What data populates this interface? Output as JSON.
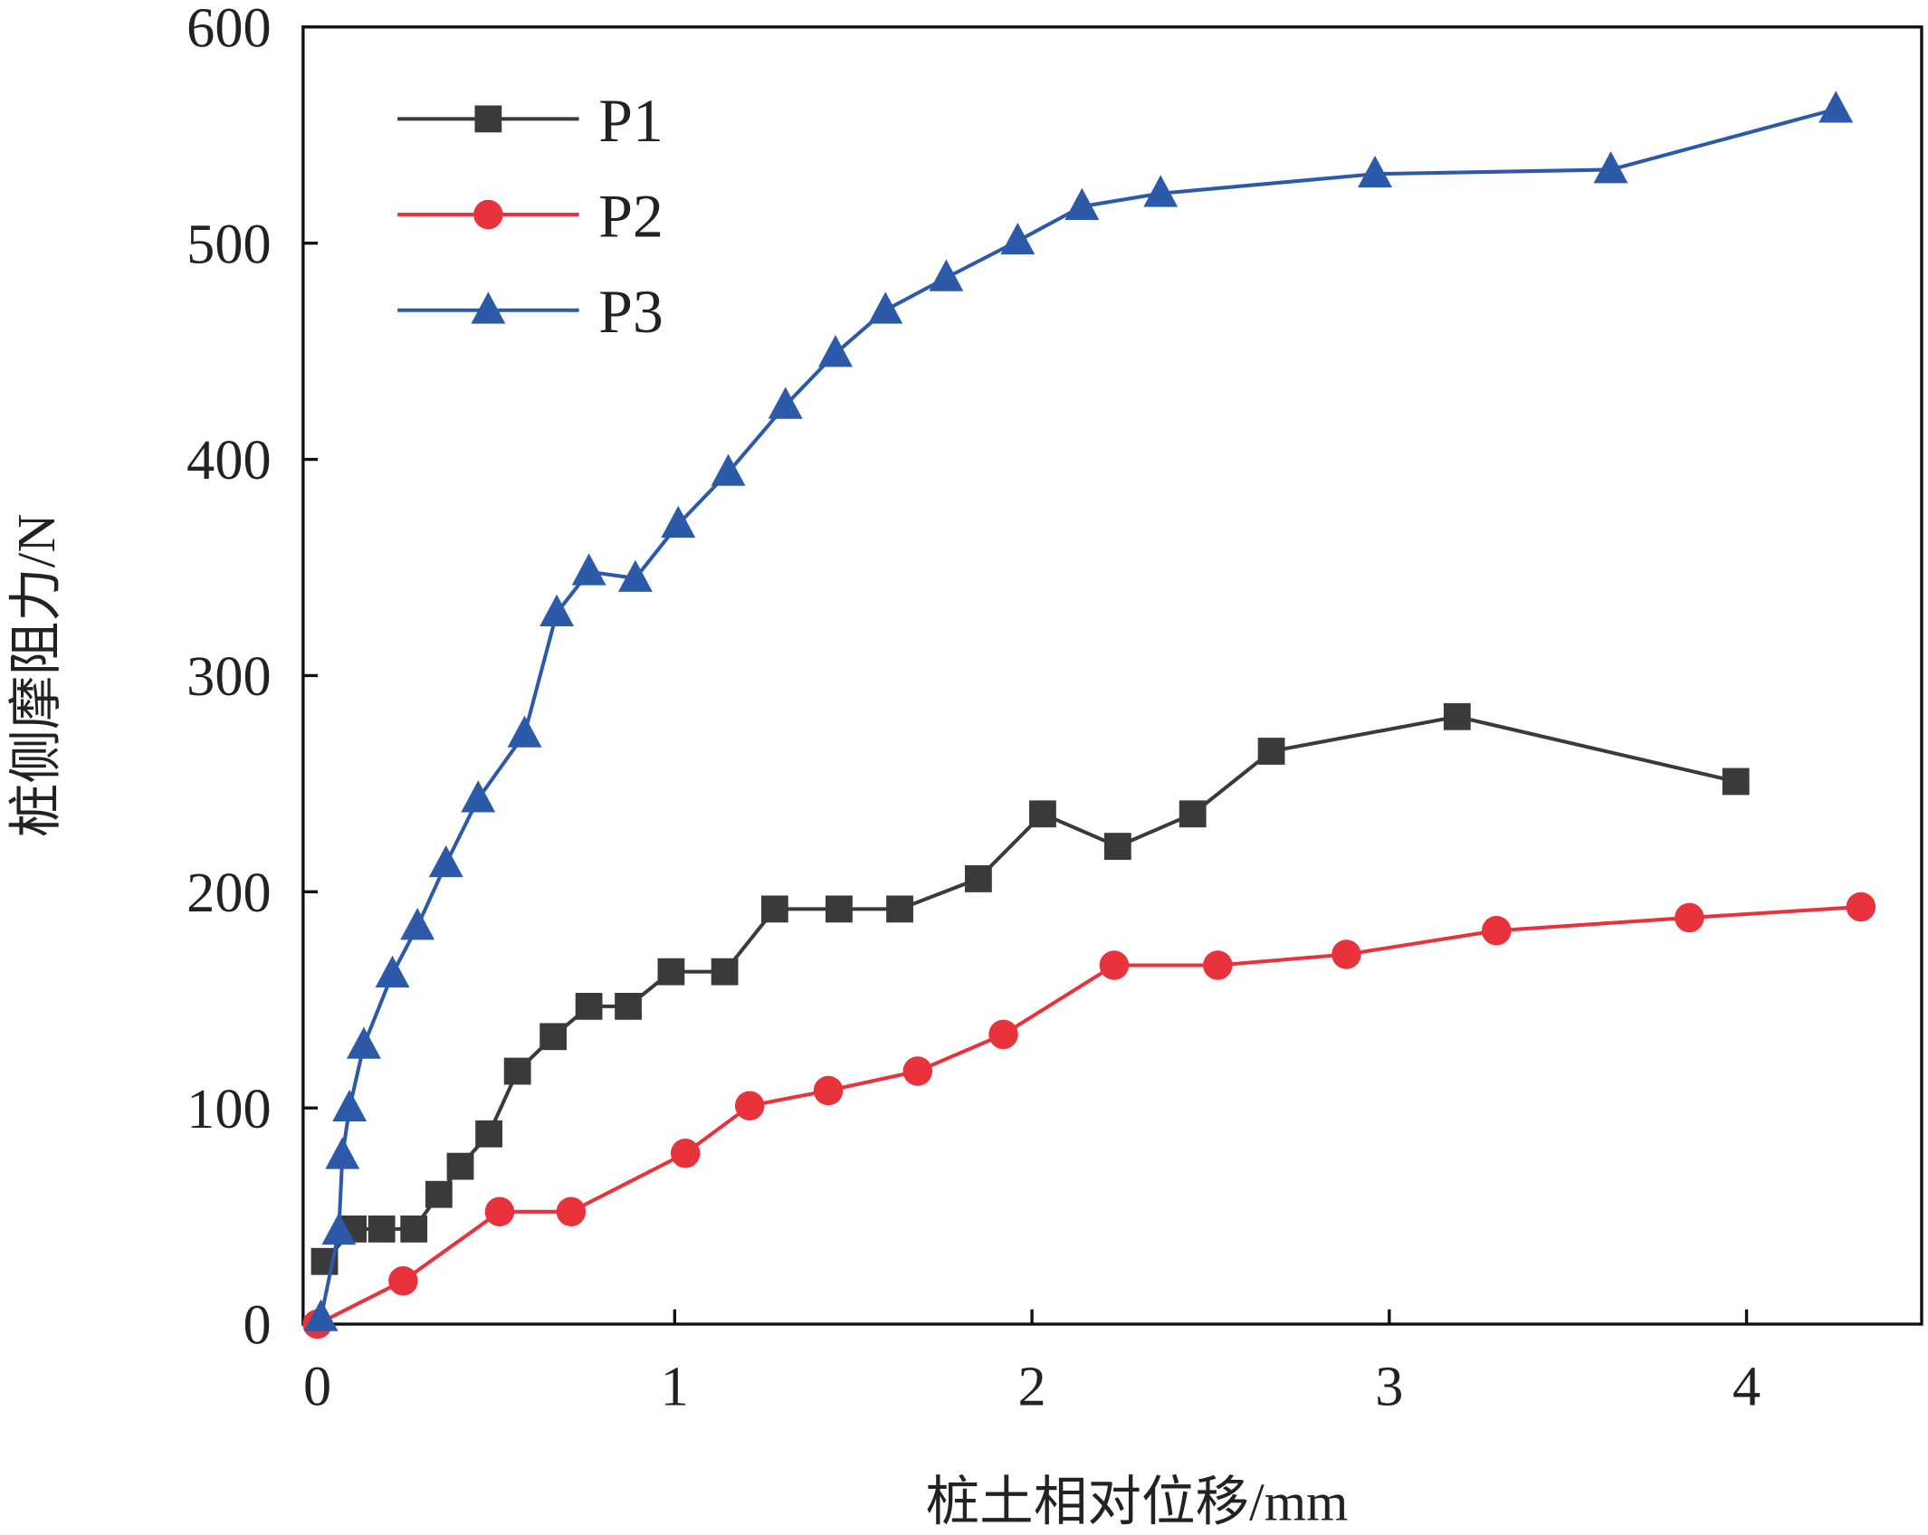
{
  "chart_data": {
    "type": "line",
    "xlabel": "桩土相对位移/mm",
    "ylabel": "桩侧摩阻力/N",
    "xlim": [
      -0.04,
      4.49
    ],
    "ylim": [
      0,
      600
    ],
    "xticks": [
      0,
      1,
      2,
      3,
      4
    ],
    "yticks": [
      0,
      100,
      200,
      300,
      400,
      500,
      600
    ],
    "legend": "upper left",
    "series": [
      {
        "name": "P1",
        "color": "#3a3a3a",
        "marker": "square",
        "x": [
          0.02,
          0.1,
          0.18,
          0.27,
          0.34,
          0.4,
          0.48,
          0.56,
          0.66,
          0.76,
          0.87,
          0.99,
          1.14,
          1.28,
          1.46,
          1.63,
          1.85,
          2.03,
          2.24,
          2.45,
          2.67,
          3.19,
          3.97
        ],
        "values": [
          29,
          44,
          44,
          44,
          60,
          73,
          88,
          117,
          133,
          147,
          147,
          163,
          163,
          192,
          192,
          192,
          206,
          236,
          221,
          236,
          265,
          281,
          251
        ]
      },
      {
        "name": "P2",
        "color": "#e8323c",
        "marker": "circle",
        "x": [
          0,
          0.24,
          0.51,
          0.71,
          1.03,
          1.21,
          1.43,
          1.68,
          1.92,
          2.23,
          2.52,
          2.88,
          3.3,
          3.84,
          4.32
        ],
        "values": [
          0,
          20,
          52,
          52,
          79,
          101,
          108,
          117,
          134,
          166,
          166,
          171,
          182,
          188,
          193
        ]
      },
      {
        "name": "P3",
        "color": "#2d5aa8",
        "marker": "triangle",
        "x": [
          0.01,
          0.06,
          0.07,
          0.09,
          0.13,
          0.21,
          0.28,
          0.36,
          0.45,
          0.58,
          0.67,
          0.76,
          0.89,
          1.01,
          1.15,
          1.31,
          1.45,
          1.59,
          1.76,
          1.96,
          2.14,
          2.36,
          2.96,
          3.62,
          4.25
        ],
        "values": [
          3,
          43,
          78,
          100,
          129,
          162,
          184,
          213,
          243,
          273,
          329,
          348,
          345,
          370,
          394,
          425,
          449,
          469,
          484,
          501,
          517,
          523,
          532,
          534,
          562
        ]
      }
    ]
  }
}
